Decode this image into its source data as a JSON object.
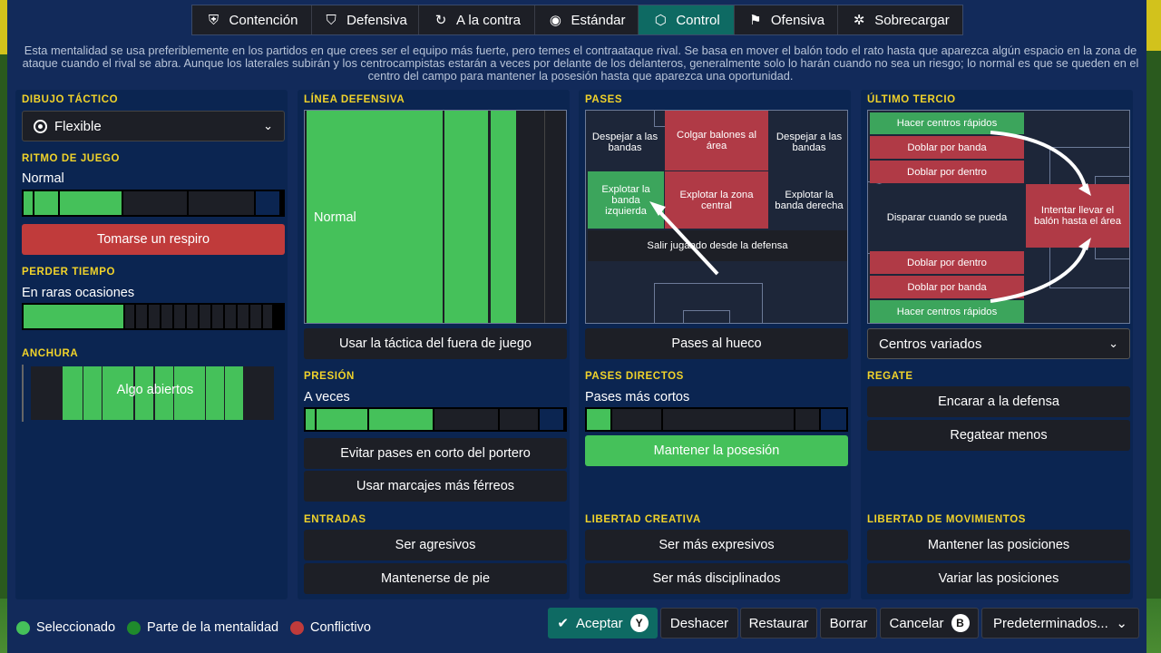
{
  "tabs": [
    {
      "label": "Contención",
      "icon": "shield-heart-icon"
    },
    {
      "label": "Defensiva",
      "icon": "shield-icon"
    },
    {
      "label": "A la contra",
      "icon": "counter-icon"
    },
    {
      "label": "Estándar",
      "icon": "balanced-icon"
    },
    {
      "label": "Control",
      "icon": "control-icon"
    },
    {
      "label": "Ofensiva",
      "icon": "attack-icon"
    },
    {
      "label": "Sobrecargar",
      "icon": "overload-icon"
    }
  ],
  "active_tab": "Control",
  "description": "Esta mentalidad se usa preferiblemente en los partidos en que crees ser el equipo más fuerte, pero temes el contraataque rival. Se basa en mover el balón todo el rato hasta que aparezca algún espacio en la zona de ataque cuando el rival se abra. Aunque los laterales subirán y los centrocampistas estarán a veces por delante de los delanteros, generalmente solo lo harán cuando no sea un riesgo; lo normal es que se queden en el centro del campo para mantener la posesión hasta que aparezca una oportunidad.",
  "col1": {
    "formation_title": "DIBUJO TÁCTICO",
    "formation_value": "Flexible",
    "tempo_title": "RITMO DE JUEGO",
    "tempo_value": "Normal",
    "tempo_button": "Tomarse un respiro",
    "timewasting_title": "PERDER TIEMPO",
    "timewasting_value": "En raras ocasiones",
    "width_title": "ANCHURA",
    "width_value": "Algo abiertos"
  },
  "col2": {
    "defline_title": "LÍNEA DEFENSIVA",
    "defline_value": "Normal",
    "offside_button": "Usar la táctica del fuera de juego",
    "press_title": "PRESIÓN",
    "press_value": "A veces",
    "press_buttons": [
      "Evitar pases en corto del portero",
      "Usar marcajes más férreos"
    ],
    "tackle_title": "ENTRADAS",
    "tackle_buttons": [
      "Ser agresivos",
      "Mantenerse de pie"
    ]
  },
  "col3": {
    "passing_title": "PASES",
    "zones": {
      "clear_left": "Despejar a las bandas",
      "hit_area": "Colgar balones al área",
      "clear_right": "Despejar a las bandas",
      "exploit_left": "Explotar la banda izquierda",
      "exploit_center": "Explotar la zona central",
      "exploit_right": "Explotar la banda derecha",
      "play_out": "Salir jugando desde la defensa"
    },
    "through_button": "Pases al hueco",
    "directness_title": "PASES DIRECTOS",
    "directness_value": "Pases más cortos",
    "possession_button": "Mantener la posesión",
    "creative_title": "LIBERTAD CREATIVA",
    "creative_buttons": [
      "Ser más expresivos",
      "Ser más disciplinados"
    ]
  },
  "col4": {
    "final_third_title": "ÚLTIMO TERCIO",
    "zones": {
      "early_cross_top": "Hacer centros rápidos",
      "overlap_top": "Doblar por banda",
      "underlap_top": "Doblar por dentro",
      "shoot": "Disparar cuando se pueda",
      "work_ball": "Intentar llevar el balón hasta el área",
      "underlap_bottom": "Doblar por dentro",
      "overlap_bottom": "Doblar por banda",
      "early_cross_bottom": "Hacer centros rápidos"
    },
    "cross_dropdown": "Centros variados",
    "dribble_title": "REGATE",
    "dribble_buttons": [
      "Encarar a la defensa",
      "Regatear menos"
    ],
    "movement_title": "LIBERTAD DE MOVIMIENTOS",
    "movement_buttons": [
      "Mantener las posiciones",
      "Variar las posiciones"
    ]
  },
  "legend": [
    {
      "label": "Seleccionado",
      "color": "#45c15a"
    },
    {
      "label": "Parte de la mentalidad",
      "color": "#1f8a2c"
    },
    {
      "label": "Conflictivo",
      "color": "#c03b3b"
    }
  ],
  "footer": {
    "accept": "Aceptar",
    "accept_key": "Y",
    "undo": "Deshacer",
    "reset": "Restaurar",
    "delete": "Borrar",
    "cancel": "Cancelar",
    "cancel_key": "B",
    "presets": "Predeterminados..."
  },
  "colors": {
    "selected": "#45c15a",
    "conflict": "#c03b3b",
    "accent_tab": "#0e6a63",
    "section_title": "#f1d32a",
    "panel": "#0b2551"
  }
}
